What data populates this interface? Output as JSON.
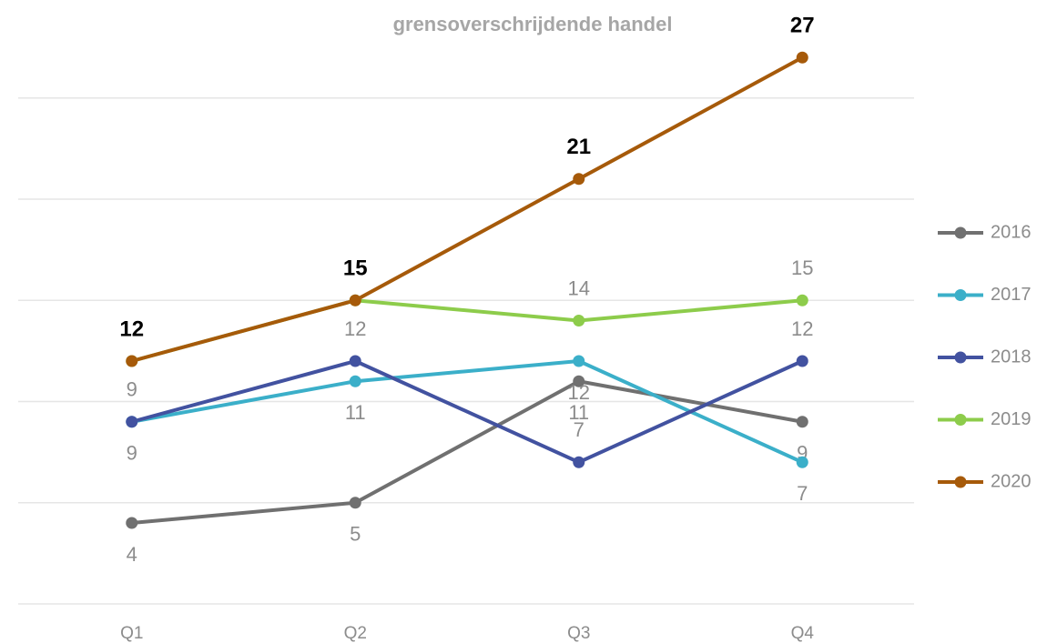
{
  "chart_data": {
    "type": "line",
    "title": "grensoverschrijdende handel",
    "categories": [
      "Q1",
      "Q2",
      "Q3",
      "Q4"
    ],
    "series": [
      {
        "name": "2016",
        "color": "#707070",
        "values": [
          4,
          5,
          11,
          9
        ]
      },
      {
        "name": "2017",
        "color": "#3bafc9",
        "values": [
          9,
          11,
          12,
          7
        ]
      },
      {
        "name": "2018",
        "color": "#4252a0",
        "values": [
          9,
          12,
          7,
          12
        ]
      },
      {
        "name": "2019",
        "color": "#8dcc4b",
        "values": [
          12,
          15,
          14,
          15
        ]
      },
      {
        "name": "2020",
        "color": "#a65a0a",
        "values": [
          12,
          15,
          21,
          27
        ]
      }
    ],
    "ylim": [
      0,
      28
    ],
    "yticks": [
      0,
      5,
      10,
      15,
      20,
      25
    ],
    "grid": true,
    "legend": "right"
  }
}
